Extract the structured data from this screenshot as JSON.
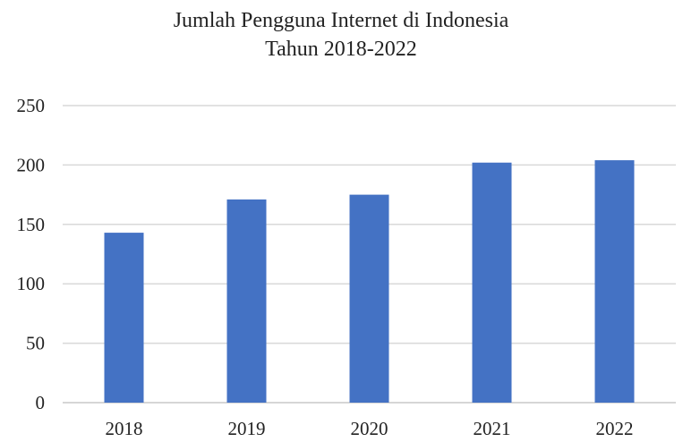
{
  "chart_data": {
    "type": "bar",
    "title": "Jumlah Pengguna Internet di Indonesia",
    "subtitle": "Tahun 2018-2022",
    "xlabel": "",
    "ylabel": "",
    "categories": [
      "2018",
      "2019",
      "2020",
      "2021",
      "2022"
    ],
    "values": [
      143,
      171,
      175,
      202,
      204
    ],
    "ylim": [
      0,
      250
    ],
    "yticks": [
      0,
      50,
      100,
      150,
      200,
      250
    ],
    "grid": true,
    "legend": "none",
    "bar_color": "#4472C4"
  }
}
